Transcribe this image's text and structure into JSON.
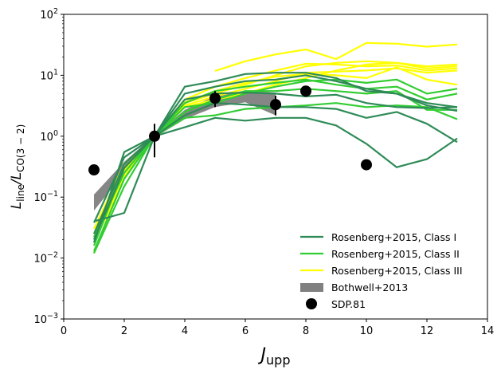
{
  "chart_data": {
    "type": "line",
    "title": "",
    "xlabel": "J",
    "xlabel_sub": "upp",
    "ylabel": "L",
    "ylabel_sub1": "line",
    "ylabel_mid": "/L",
    "ylabel_sub2": "CO(3 − 2)",
    "xlim": [
      0,
      14
    ],
    "ylim_log10": [
      -3,
      2
    ],
    "yscale": "log",
    "x_ticks": [
      0,
      2,
      4,
      6,
      8,
      10,
      12,
      14
    ],
    "x_tick_labels": [
      "0",
      "2",
      "4",
      "6",
      "8",
      "10",
      "12",
      "14"
    ],
    "y_ticks_log10": [
      -3,
      -2,
      -1,
      0,
      1,
      2
    ],
    "y_tick_base": "10",
    "y_tick_exps": [
      "−3",
      "−2",
      "−1",
      "0",
      "1",
      "2"
    ],
    "legend_position": "lower-right",
    "colors": {
      "class1": "#2e8b57",
      "class2": "#32cd32",
      "class3": "#ffff00",
      "bothwell": "#808080",
      "sdp": "#000000"
    },
    "legend": [
      {
        "key": "class1",
        "label": "Rosenberg+2015, Class I",
        "kind": "line"
      },
      {
        "key": "class2",
        "label": "Rosenberg+2015, Class II",
        "kind": "line"
      },
      {
        "key": "class3",
        "label": "Rosenberg+2015, Class III",
        "kind": "line"
      },
      {
        "key": "bothwell",
        "label": "Bothwell+2013",
        "kind": "patch"
      },
      {
        "key": "sdp",
        "label": "SDP.81",
        "kind": "marker"
      }
    ],
    "bothwell_band": {
      "x": [
        1,
        2,
        3,
        4,
        5,
        6,
        7
      ],
      "low": [
        0.06,
        0.25,
        0.95,
        1.9,
        3.0,
        3.6,
        2.2
      ],
      "high": [
        0.11,
        0.38,
        1.05,
        2.7,
        4.6,
        5.6,
        5.2
      ]
    },
    "sdp81": {
      "x": [
        1,
        3,
        5,
        7,
        8,
        10
      ],
      "y": [
        0.28,
        1.0,
        4.2,
        3.3,
        5.5,
        0.34
      ],
      "yerr_low": [
        0,
        0.55,
        1.2,
        1.1,
        0,
        0
      ],
      "yerr_high": [
        0,
        0.6,
        1.3,
        1.3,
        0,
        0
      ]
    },
    "series": [
      {
        "name": "Class I a",
        "class": "class1",
        "x": [
          1,
          2,
          3,
          4,
          5,
          6,
          7,
          8,
          9,
          10,
          11,
          12,
          13
        ],
        "y": [
          0.018,
          0.55,
          1.0,
          6.5,
          8.0,
          10.5,
          11.0,
          11.0,
          9.0,
          5.5,
          5.0,
          3.5,
          3.0
        ]
      },
      {
        "name": "Class I b",
        "class": "class1",
        "x": [
          1,
          2,
          3,
          4,
          5,
          6,
          7,
          8,
          9,
          10,
          11,
          12,
          13
        ],
        "y": [
          0.04,
          0.055,
          1.0,
          1.4,
          2.0,
          1.8,
          2.0,
          2.0,
          1.5,
          0.75,
          0.31,
          0.42,
          0.92
        ]
      },
      {
        "name": "Class I c",
        "class": "class1",
        "x": [
          1,
          2,
          3,
          4,
          5,
          6,
          7,
          8,
          9,
          10,
          11,
          12,
          13
        ],
        "y": [
          0.02,
          0.3,
          1.0,
          2.2,
          3.5,
          3.3,
          3.0,
          3.0,
          2.8,
          2.0,
          2.5,
          1.6,
          0.8
        ]
      },
      {
        "name": "Class I d",
        "class": "class1",
        "x": [
          1,
          2,
          3,
          4,
          5,
          6,
          7,
          8,
          9,
          10,
          11,
          12,
          13
        ],
        "y": [
          0.038,
          0.45,
          1.0,
          4.0,
          5.0,
          5.2,
          5.0,
          4.5,
          4.8,
          3.5,
          3.0,
          2.9,
          3.0
        ]
      },
      {
        "name": "Class I e",
        "class": "class1",
        "x": [
          1,
          2,
          3,
          4,
          5,
          6,
          7,
          8,
          9,
          10,
          11,
          12,
          13
        ],
        "y": [
          0.025,
          0.35,
          1.0,
          5.0,
          6.5,
          8.0,
          8.5,
          10.0,
          8.0,
          6.0,
          5.0,
          3.2,
          2.6
        ]
      },
      {
        "name": "Class II a",
        "class": "class2",
        "x": [
          1,
          2,
          3,
          4,
          5,
          6,
          7,
          8,
          9,
          10,
          11,
          12,
          13
        ],
        "y": [
          0.013,
          0.2,
          1.0,
          3.0,
          3.5,
          5.0,
          6.5,
          8.0,
          8.5,
          7.5,
          8.5,
          5.0,
          6.0
        ]
      },
      {
        "name": "Class II b",
        "class": "class2",
        "x": [
          1,
          2,
          3,
          4,
          5,
          6,
          7,
          8,
          9,
          10,
          11,
          12,
          13
        ],
        "y": [
          0.012,
          0.15,
          1.0,
          2.0,
          2.2,
          2.8,
          3.0,
          3.2,
          3.5,
          3.0,
          3.2,
          3.0,
          1.9
        ]
      },
      {
        "name": "Class II c",
        "class": "class2",
        "x": [
          1,
          2,
          3,
          4,
          5,
          6,
          7,
          8,
          9,
          10,
          11,
          12,
          13
        ],
        "y": [
          0.016,
          0.3,
          1.0,
          3.5,
          5.5,
          6.5,
          7.5,
          8.5,
          7.0,
          6.0,
          6.5,
          4.0,
          5.0
        ]
      },
      {
        "name": "Class II d",
        "class": "class2",
        "x": [
          1,
          2,
          3,
          4,
          5,
          6,
          7,
          8,
          9,
          10,
          11,
          12,
          13
        ],
        "y": [
          0.022,
          0.25,
          1.0,
          2.5,
          4.0,
          5.5,
          5.5,
          6.0,
          5.5,
          5.0,
          5.5,
          2.7,
          2.7
        ]
      },
      {
        "name": "Class III a",
        "class": "class3",
        "x": [
          5,
          6,
          7,
          8,
          9,
          10,
          11,
          12,
          13
        ],
        "y": [
          11.8,
          17.0,
          22.0,
          26.5,
          18.5,
          34.0,
          33.0,
          29.5,
          32.0
        ]
      },
      {
        "name": "Class III b",
        "class": "class3",
        "x": [
          1,
          2,
          3,
          4,
          5,
          6,
          7,
          8,
          9,
          10,
          11,
          12,
          13
        ],
        "y": [
          0.012,
          0.25,
          1.0,
          3.5,
          5.0,
          7.0,
          10.0,
          14.0,
          16.0,
          17.0,
          16.0,
          13.0,
          14.0
        ]
      },
      {
        "name": "Class III c",
        "class": "class3",
        "x": [
          1,
          2,
          3,
          4,
          5,
          6,
          7,
          8,
          9,
          10,
          11,
          12,
          13
        ],
        "y": [
          0.03,
          0.35,
          1.0,
          4.0,
          6.5,
          9.0,
          12.0,
          15.5,
          15.0,
          14.0,
          14.5,
          12.0,
          13.0
        ]
      },
      {
        "name": "Class III d",
        "class": "class3",
        "x": [
          1,
          2,
          3,
          4,
          5,
          6,
          7,
          8,
          9,
          10,
          11,
          12,
          13
        ],
        "y": [
          0.02,
          0.3,
          1.0,
          3.2,
          4.5,
          6.0,
          8.0,
          11.0,
          11.5,
          12.0,
          13.0,
          11.0,
          12.0
        ]
      },
      {
        "name": "Class III e",
        "class": "class3",
        "x": [
          1,
          2,
          3,
          4,
          5,
          6,
          7,
          8,
          9,
          10,
          11,
          12,
          13
        ],
        "y": [
          0.025,
          0.28,
          1.0,
          3.6,
          5.5,
          7.5,
          9.5,
          10.5,
          10.0,
          9.0,
          13.5,
          8.5,
          7.0
        ]
      },
      {
        "name": "Class III f",
        "class": "class3",
        "x": [
          1,
          2,
          3,
          4,
          5,
          6,
          7,
          8,
          9,
          10,
          11,
          12,
          13
        ],
        "y": [
          0.018,
          0.22,
          1.0,
          3.0,
          4.0,
          5.0,
          7.0,
          9.0,
          12.0,
          15.0,
          16.0,
          14.0,
          15.0
        ]
      }
    ]
  }
}
